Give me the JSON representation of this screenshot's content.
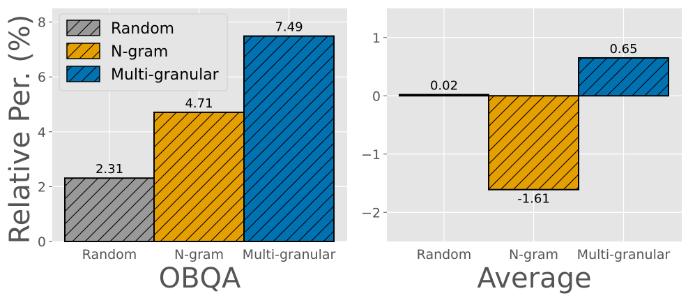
{
  "ylabel": "Relative Per. (%)",
  "chart_data": [
    {
      "type": "bar",
      "xlabel": "OBQA",
      "ylabel": "Relative Per. (%)",
      "categories": [
        "Random",
        "N-gram",
        "Multi-granular"
      ],
      "values": [
        2.31,
        4.71,
        7.49
      ],
      "value_labels": [
        "2.31",
        "4.71",
        "7.49"
      ],
      "ylim": [
        0,
        8.5
      ],
      "yticks": [
        0,
        2,
        4,
        6,
        8
      ],
      "ytick_labels": [
        "0",
        "2",
        "4",
        "6",
        "8"
      ],
      "colors": [
        "#999999",
        "#E69F00",
        "#0072B2"
      ],
      "hatch": "diagonal",
      "grid": true,
      "legend": {
        "placement": "upper-left",
        "entries": [
          "Random",
          "N-gram",
          "Multi-granular"
        ]
      }
    },
    {
      "type": "bar",
      "xlabel": "Average",
      "categories": [
        "Random",
        "N-gram",
        "Multi-granular"
      ],
      "values": [
        0.02,
        -1.61,
        0.65
      ],
      "value_labels": [
        "0.02",
        "-1.61",
        "0.65"
      ],
      "ylim": [
        -2.5,
        1.5
      ],
      "yticks": [
        -2,
        -1,
        0,
        1
      ],
      "ytick_labels": [
        "−2",
        "−1",
        "0",
        "1"
      ],
      "colors": [
        "#999999",
        "#E69F00",
        "#0072B2"
      ],
      "hatch": "diagonal",
      "grid": true
    }
  ]
}
